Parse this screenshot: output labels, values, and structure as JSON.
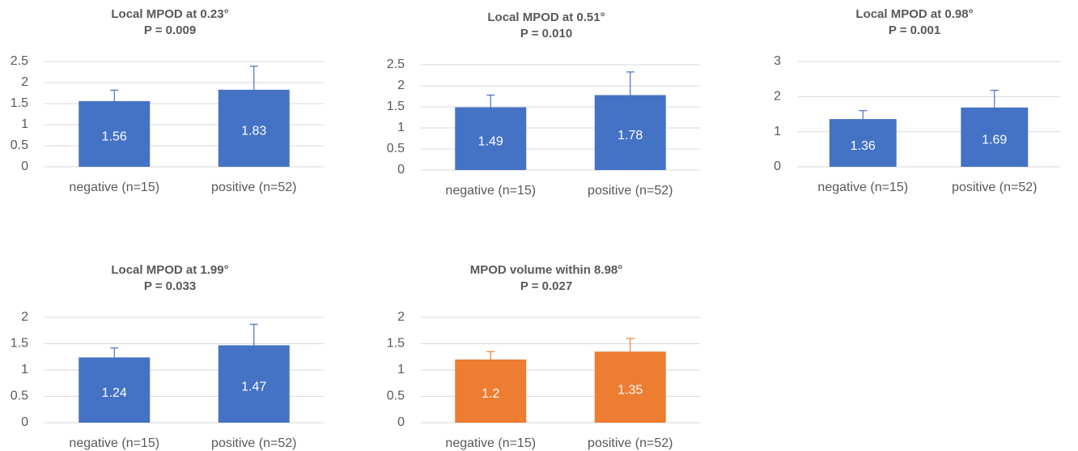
{
  "chart_data": [
    {
      "type": "bar",
      "title": "Local MPOD at 0.23°",
      "subtitle": "P = 0.009",
      "categories": [
        "negative (n=15)",
        "positive (n=52)"
      ],
      "values": [
        1.56,
        1.83
      ],
      "errors": [
        0.26,
        0.56
      ],
      "color": "#4472c4",
      "ylim": [
        0,
        2.5
      ],
      "yticks": [
        0,
        0.5,
        1,
        1.5,
        2,
        2.5
      ],
      "grid": true
    },
    {
      "type": "bar",
      "title": "Local MPOD at 0.51°",
      "subtitle": "P = 0.010",
      "categories": [
        "negative (n=15)",
        "positive (n=52)"
      ],
      "values": [
        1.49,
        1.78
      ],
      "errors": [
        0.29,
        0.55
      ],
      "color": "#4472c4",
      "ylim": [
        0,
        2.5
      ],
      "yticks": [
        0,
        0.5,
        1,
        1.5,
        2,
        2.5
      ],
      "grid": true
    },
    {
      "type": "bar",
      "title": "Local MPOD at 0.98°",
      "subtitle": "P = 0.001",
      "categories": [
        "negative (n=15)",
        "positive (n=52)"
      ],
      "values": [
        1.36,
        1.69
      ],
      "errors": [
        0.24,
        0.49
      ],
      "color": "#4472c4",
      "ylim": [
        0,
        3
      ],
      "yticks": [
        0,
        1,
        2,
        3
      ],
      "grid": true
    },
    {
      "type": "bar",
      "title": "Local MPOD at 1.99°",
      "subtitle": "P = 0.033",
      "categories": [
        "negative (n=15)",
        "positive (n=52)"
      ],
      "values": [
        1.24,
        1.47
      ],
      "errors": [
        0.18,
        0.4
      ],
      "color": "#4472c4",
      "ylim": [
        0,
        2
      ],
      "yticks": [
        0,
        0.5,
        1,
        1.5,
        2
      ],
      "grid": true
    },
    {
      "type": "bar",
      "title": "MPOD volume within 8.98°",
      "subtitle": "P = 0.027",
      "categories": [
        "negative (n=15)",
        "positive (n=52)"
      ],
      "values": [
        1.2,
        1.35
      ],
      "errors": [
        0.15,
        0.25
      ],
      "color": "#ed7d31",
      "ylim": [
        0,
        2
      ],
      "yticks": [
        0,
        0.5,
        1,
        1.5,
        2
      ],
      "grid": true
    }
  ]
}
